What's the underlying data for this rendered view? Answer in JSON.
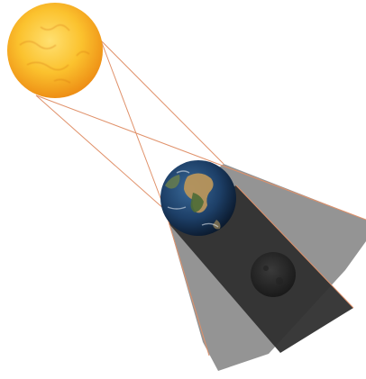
{
  "diagram": {
    "type": "lunar-eclipse-geometry",
    "bodies": [
      {
        "id": "sun",
        "name": "Sun"
      },
      {
        "id": "earth",
        "name": "Earth"
      },
      {
        "id": "moon",
        "name": "Moon"
      }
    ],
    "shadow_regions": [
      {
        "id": "penumbra",
        "name": "penumbra"
      },
      {
        "id": "umbra",
        "name": "umbra"
      }
    ],
    "colors": {
      "sun_core": "#ffe071",
      "sun_mid": "#fbc22e",
      "sun_edge": "#ee8f15",
      "earth_ocean": "#1d3f67",
      "earth_land": "#b8955b",
      "earth_green": "#4c6b36",
      "moon": "#2a2a2a",
      "penumbra": "#8e8e8e",
      "umbra": "#2f2f2f",
      "ray": "#e0916a",
      "background": "#ffffff"
    }
  }
}
